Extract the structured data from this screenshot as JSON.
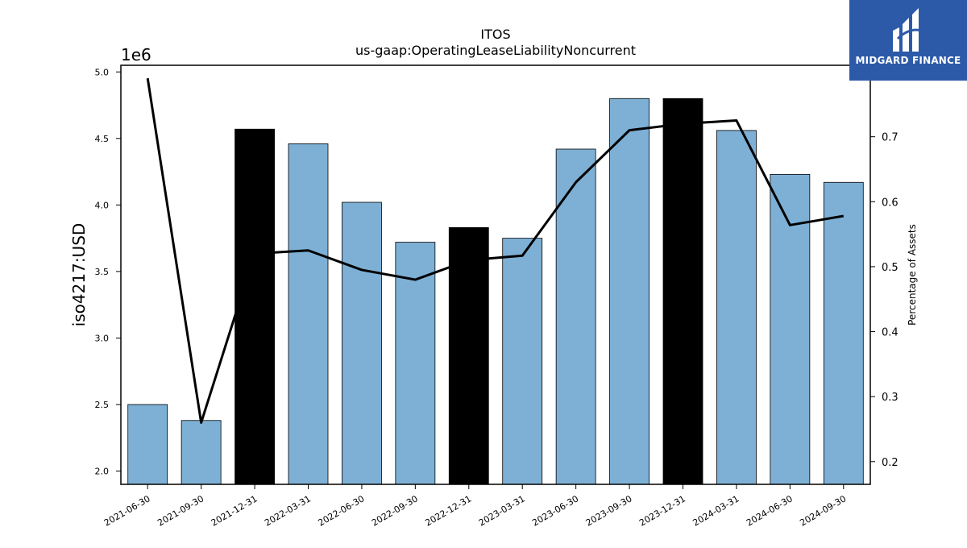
{
  "chart_data": {
    "type": "bar",
    "title": "ITOS",
    "subtitle": "us-gaap:OperatingLeaseLiabilityNoncurrent",
    "ylabel": "iso4217:USD",
    "y2label": "Percentage of Assets",
    "y_offset_label": "1e6",
    "ylim": [
      1.9,
      5.05
    ],
    "y2lim": [
      0.165,
      0.81
    ],
    "yticks": [
      "2.0",
      "2.5",
      "3.0",
      "3.5",
      "4.0",
      "4.5",
      "5.0"
    ],
    "y2ticks": [
      "0.2",
      "0.3",
      "0.4",
      "0.5",
      "0.6",
      "0.7"
    ],
    "categories": [
      "2021-06-30",
      "2021-09-30",
      "2021-12-31",
      "2022-03-31",
      "2022-06-30",
      "2022-09-30",
      "2022-12-31",
      "2023-03-31",
      "2023-06-30",
      "2023-09-30",
      "2023-12-31",
      "2024-03-31",
      "2024-06-30",
      "2024-09-30"
    ],
    "series": [
      {
        "kind": "bar",
        "values": [
          2.5,
          2.38,
          4.57,
          4.46,
          4.02,
          3.72,
          3.83,
          3.75,
          4.42,
          4.8,
          4.8,
          4.56,
          4.23,
          4.17
        ],
        "colors": [
          "#7eb0d5",
          "#7eb0d5",
          "#000000",
          "#7eb0d5",
          "#7eb0d5",
          "#7eb0d5",
          "#000000",
          "#7eb0d5",
          "#7eb0d5",
          "#7eb0d5",
          "#000000",
          "#7eb0d5",
          "#7eb0d5",
          "#7eb0d5"
        ]
      },
      {
        "kind": "line",
        "axis": "right",
        "color": "#000000",
        "values": [
          0.79,
          0.26,
          0.52,
          0.525,
          0.495,
          0.48,
          0.51,
          0.517,
          0.63,
          0.71,
          0.72,
          0.725,
          0.564,
          0.578
        ]
      }
    ],
    "grid": false
  },
  "logo": {
    "text": "MIDGARD FINANCE",
    "color": "#2c5aa8"
  }
}
